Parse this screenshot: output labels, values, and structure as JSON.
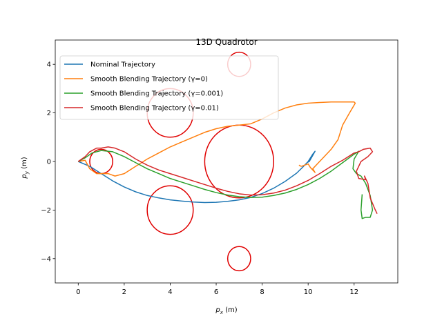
{
  "chart_data": {
    "type": "line",
    "title": "13D Quadrotor",
    "xlabel": {
      "main": "p",
      "sub": "x",
      "unit": " (m)"
    },
    "ylabel": {
      "main": "p",
      "sub": "y",
      "unit": " (m)"
    },
    "xlim": [
      -1,
      13.9
    ],
    "ylim": [
      -5,
      5
    ],
    "xticks": [
      0,
      2,
      4,
      6,
      8,
      10,
      12
    ],
    "yticks": [
      -4,
      -2,
      0,
      2,
      4
    ],
    "grid": false,
    "legend_position": "top-left",
    "series": [
      {
        "name": "Nominal Trajectory",
        "color": "#1f77b4",
        "points": [
          [
            0,
            0
          ],
          [
            0.5,
            -0.2
          ],
          [
            1,
            -0.5
          ],
          [
            1.5,
            -0.8
          ],
          [
            2,
            -1.05
          ],
          [
            2.5,
            -1.25
          ],
          [
            3,
            -1.4
          ],
          [
            3.5,
            -1.5
          ],
          [
            4,
            -1.58
          ],
          [
            4.5,
            -1.63
          ],
          [
            5,
            -1.67
          ],
          [
            5.5,
            -1.69
          ],
          [
            6,
            -1.68
          ],
          [
            6.5,
            -1.64
          ],
          [
            7,
            -1.58
          ],
          [
            7.5,
            -1.48
          ],
          [
            8,
            -1.32
          ],
          [
            8.5,
            -1.1
          ],
          [
            9,
            -0.82
          ],
          [
            9.5,
            -0.48
          ],
          [
            9.8,
            -0.2
          ],
          [
            10,
            0
          ],
          [
            10.2,
            0.3
          ],
          [
            10.3,
            0.42
          ],
          [
            10.2,
            0.25
          ],
          [
            10.05,
            0.0
          ],
          [
            9.95,
            -0.05
          ]
        ]
      },
      {
        "name": "Smooth Blending Trajectory (γ=0)",
        "color": "#ff7f0e",
        "points": [
          [
            0,
            0
          ],
          [
            0.3,
            0.05
          ],
          [
            0.5,
            -0.3
          ],
          [
            0.8,
            -0.5
          ],
          [
            1,
            -0.5
          ],
          [
            1.3,
            -0.5
          ],
          [
            1.6,
            -0.6
          ],
          [
            2,
            -0.5
          ],
          [
            2.5,
            -0.2
          ],
          [
            3,
            0.1
          ],
          [
            3.5,
            0.35
          ],
          [
            4,
            0.6
          ],
          [
            4.5,
            0.8
          ],
          [
            5,
            1.0
          ],
          [
            5.5,
            1.2
          ],
          [
            6,
            1.35
          ],
          [
            6.5,
            1.45
          ],
          [
            7,
            1.5
          ],
          [
            7.5,
            1.55
          ],
          [
            8,
            1.75
          ],
          [
            8.5,
            2.0
          ],
          [
            9,
            2.2
          ],
          [
            9.5,
            2.33
          ],
          [
            10,
            2.4
          ],
          [
            10.5,
            2.43
          ],
          [
            11,
            2.45
          ],
          [
            11.5,
            2.45
          ],
          [
            12,
            2.45
          ],
          [
            12.05,
            2.4
          ],
          [
            11.8,
            2.0
          ],
          [
            11.5,
            1.5
          ],
          [
            11.3,
            0.9
          ],
          [
            11.0,
            0.5
          ],
          [
            10.7,
            0.2
          ],
          [
            10.4,
            -0.1
          ],
          [
            10.2,
            -0.3
          ],
          [
            10.3,
            -0.45
          ],
          [
            10.1,
            -0.25
          ],
          [
            10.0,
            -0.1
          ],
          [
            9.7,
            -0.2
          ],
          [
            9.6,
            -0.15
          ]
        ]
      },
      {
        "name": "Smooth Blending Trajectory (γ=0.001)",
        "color": "#2ca02c",
        "points": [
          [
            0,
            0
          ],
          [
            0.3,
            0.15
          ],
          [
            0.6,
            0.35
          ],
          [
            1,
            0.45
          ],
          [
            1.5,
            0.4
          ],
          [
            2,
            0.2
          ],
          [
            2.5,
            -0.05
          ],
          [
            3,
            -0.3
          ],
          [
            3.5,
            -0.5
          ],
          [
            4,
            -0.7
          ],
          [
            4.5,
            -0.85
          ],
          [
            5,
            -1.0
          ],
          [
            5.5,
            -1.15
          ],
          [
            6,
            -1.28
          ],
          [
            6.5,
            -1.38
          ],
          [
            7,
            -1.45
          ],
          [
            7.5,
            -1.48
          ],
          [
            8,
            -1.47
          ],
          [
            8.5,
            -1.4
          ],
          [
            9,
            -1.3
          ],
          [
            9.5,
            -1.15
          ],
          [
            10,
            -0.95
          ],
          [
            10.5,
            -0.7
          ],
          [
            11,
            -0.4
          ],
          [
            11.5,
            -0.05
          ],
          [
            12,
            0.3
          ],
          [
            12.2,
            0.42
          ],
          [
            12.0,
            0.1
          ],
          [
            11.95,
            -0.3
          ],
          [
            12.1,
            -0.5
          ],
          [
            12.3,
            -0.6
          ],
          [
            12.5,
            -0.9
          ],
          [
            12.7,
            -1.4
          ],
          [
            12.8,
            -2.0
          ],
          [
            12.7,
            -2.3
          ],
          [
            12.5,
            -2.3
          ],
          [
            12.35,
            -2.35
          ],
          [
            12.3,
            -2.0
          ],
          [
            12.35,
            -1.35
          ]
        ]
      },
      {
        "name": "Smooth Blending Trajectory (γ=0.01)",
        "color": "#d62728",
        "points": [
          [
            0,
            0
          ],
          [
            0.3,
            0.2
          ],
          [
            0.5,
            0.4
          ],
          [
            0.8,
            0.55
          ],
          [
            1,
            0.55
          ],
          [
            1.3,
            0.6
          ],
          [
            1.6,
            0.55
          ],
          [
            2,
            0.4
          ],
          [
            2.5,
            0.1
          ],
          [
            3,
            -0.15
          ],
          [
            3.5,
            -0.35
          ],
          [
            4,
            -0.5
          ],
          [
            4.5,
            -0.65
          ],
          [
            5,
            -0.8
          ],
          [
            5.5,
            -0.95
          ],
          [
            6,
            -1.1
          ],
          [
            6.5,
            -1.23
          ],
          [
            7,
            -1.33
          ],
          [
            7.5,
            -1.38
          ],
          [
            8,
            -1.37
          ],
          [
            8.5,
            -1.3
          ],
          [
            9,
            -1.18
          ],
          [
            9.5,
            -1.0
          ],
          [
            10,
            -0.78
          ],
          [
            10.5,
            -0.5
          ],
          [
            11,
            -0.2
          ],
          [
            11.5,
            0.05
          ],
          [
            12,
            0.35
          ],
          [
            12.2,
            0.4
          ],
          [
            12.4,
            0.5
          ],
          [
            12.7,
            0.55
          ],
          [
            12.8,
            0.4
          ],
          [
            12.6,
            0.2
          ],
          [
            12.3,
            0.0
          ],
          [
            12.1,
            -0.4
          ],
          [
            12.2,
            -0.7
          ],
          [
            12.5,
            -0.75
          ],
          [
            12.45,
            -0.6
          ],
          [
            12.6,
            -0.9
          ],
          [
            12.7,
            -1.5
          ],
          [
            12.9,
            -1.95
          ],
          [
            13.0,
            -2.15
          ]
        ]
      }
    ],
    "obstacles": [
      {
        "cx": 1,
        "cy": 0,
        "r": 0.5
      },
      {
        "cx": 4,
        "cy": 2,
        "r": 1
      },
      {
        "cx": 4,
        "cy": -2,
        "r": 1
      },
      {
        "cx": 7,
        "cy": 0,
        "r": 1.5
      },
      {
        "cx": 7,
        "cy": 4,
        "r": 0.5
      },
      {
        "cx": 7,
        "cy": -4,
        "r": 0.5
      }
    ],
    "obstacle_color": "#e00000"
  }
}
